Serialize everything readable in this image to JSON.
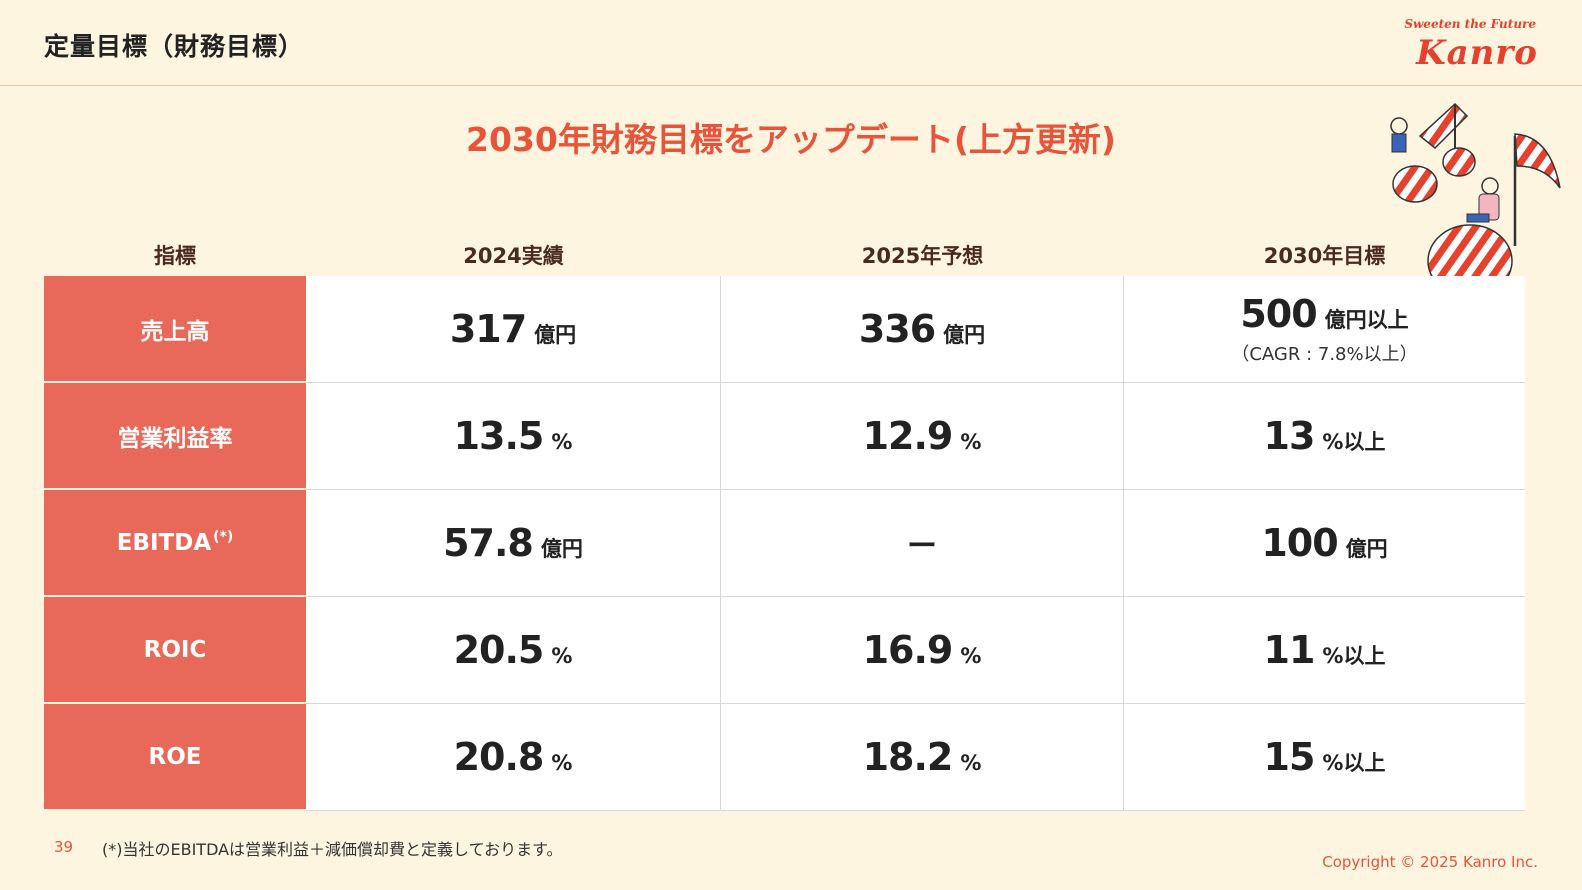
{
  "header": {
    "title": "定量目標（財務目標）",
    "logo_tagline": "Sweeten the Future",
    "logo_word": "Kanro"
  },
  "headline": "2030年財務目標をアップデート(上方更新)",
  "table": {
    "columns": [
      "指標",
      "2024実績",
      "2025年予想",
      "2030年目標"
    ],
    "rows": [
      {
        "label": "売上高",
        "label_sup": "",
        "cells": [
          {
            "value": "317",
            "unit": "億円",
            "note": ""
          },
          {
            "value": "336",
            "unit": "億円",
            "note": ""
          },
          {
            "value": "500",
            "unit": "億円以上",
            "note": "（CAGR : 7.8%以上）"
          }
        ]
      },
      {
        "label": "営業利益率",
        "label_sup": "",
        "cells": [
          {
            "value": "13.5",
            "unit": "%",
            "note": ""
          },
          {
            "value": "12.9",
            "unit": "%",
            "note": ""
          },
          {
            "value": "13",
            "unit": "%以上",
            "note": ""
          }
        ]
      },
      {
        "label": "EBITDA",
        "label_sup": "(*)",
        "cells": [
          {
            "value": "57.8",
            "unit": "億円",
            "note": ""
          },
          {
            "value": "ー",
            "unit": "",
            "note": ""
          },
          {
            "value": "100",
            "unit": "億円",
            "note": ""
          }
        ]
      },
      {
        "label": "ROIC",
        "label_sup": "",
        "cells": [
          {
            "value": "20.5",
            "unit": "%",
            "note": ""
          },
          {
            "value": "16.9",
            "unit": "%",
            "note": ""
          },
          {
            "value": "11",
            "unit": "%以上",
            "note": ""
          }
        ]
      },
      {
        "label": "ROE",
        "label_sup": "",
        "cells": [
          {
            "value": "20.8",
            "unit": "%",
            "note": ""
          },
          {
            "value": "18.2",
            "unit": "%",
            "note": ""
          },
          {
            "value": "15",
            "unit": "%以上",
            "note": ""
          }
        ]
      }
    ]
  },
  "footer": {
    "page_number": "39",
    "footnote": "(*)当社のEBITDAは営業利益＋減価償却費と定義しております。",
    "copyright": "Copyright © 2025  Kanro Inc."
  },
  "colors": {
    "background": "#fdf5e0",
    "accent": "#e8543a",
    "row_label_bg": "#e8695a",
    "header_text": "#4a2a20"
  },
  "icons": [
    "music-note-illustration"
  ]
}
